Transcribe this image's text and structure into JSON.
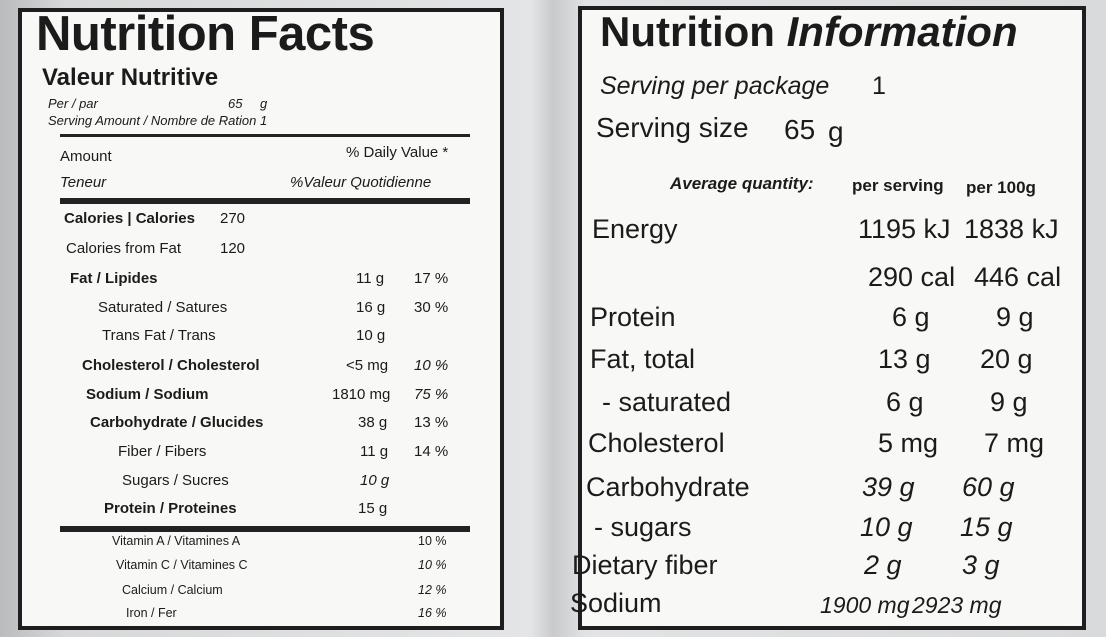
{
  "left": {
    "title": "Nutrition Facts",
    "subtitle": "Valeur Nutritive",
    "per_label": "Per / par",
    "per_value": "65",
    "per_unit": "g",
    "serving_line": "Serving Amount / Nombre de Ration 1",
    "amount": "Amount",
    "teneur": "Teneur",
    "dv_en": "% Daily Value *",
    "dv_fr": "%Valeur Quotidienne",
    "calories_label": "Calories | Calories",
    "calories_value": "270",
    "fat_cal_label": "Calories from Fat",
    "fat_cal_value": "120",
    "rows": [
      {
        "label": "Fat / Lipides",
        "amount": "11 g",
        "pct": "17 %"
      },
      {
        "label": "Saturated / Satures",
        "amount": "16 g",
        "pct": "30 %"
      },
      {
        "label": "Trans Fat / Trans",
        "amount": "10 g",
        "pct": ""
      },
      {
        "label": "Cholesterol / Cholesterol",
        "amount": "<5 mg",
        "pct": "10 %"
      },
      {
        "label": "Sodium / Sodium",
        "amount": "1810 mg",
        "pct": "75 %"
      },
      {
        "label": "Carbohydrate / Glucides",
        "amount": "38 g",
        "pct": "13 %"
      },
      {
        "label": "Fiber / Fibers",
        "amount": "11 g",
        "pct": "14 %"
      },
      {
        "label": "Sugars / Sucres",
        "amount": "10 g",
        "pct": ""
      },
      {
        "label": "Protein / Proteines",
        "amount": "15 g",
        "pct": ""
      }
    ],
    "vitamins": [
      {
        "label": "Vitamin A / Vitamines A",
        "pct": "10 %"
      },
      {
        "label": "Vitamin C / Vitamines C",
        "pct": "10 %"
      },
      {
        "label": "Calcium / Calcium",
        "pct": "12 %"
      },
      {
        "label": "Iron / Fer",
        "pct": "16 %"
      }
    ]
  },
  "right": {
    "title_a": "Nutrition",
    "title_b": "Information",
    "servings_label": "Serving per package",
    "servings_value": "1",
    "size_label": "Serving size",
    "size_value": "65",
    "size_unit": "g",
    "avg_label": "Average quantity:",
    "col_serving": "per serving",
    "col_100g": "per 100g",
    "rows": [
      {
        "label": "Energy",
        "serving": "1195 kJ",
        "per100": "1838 kJ"
      },
      {
        "label": "",
        "serving": "290 cal",
        "per100": "446 cal"
      },
      {
        "label": "Protein",
        "serving": "6 g",
        "per100": "9 g"
      },
      {
        "label": "Fat, total",
        "serving": "13 g",
        "per100": "20 g"
      },
      {
        "label": "- saturated",
        "serving": "6 g",
        "per100": "9 g"
      },
      {
        "label": "Cholesterol",
        "serving": "5 mg",
        "per100": "7 mg"
      },
      {
        "label": "Carbohydrate",
        "serving": "39 g",
        "per100": "60 g"
      },
      {
        "label": "- sugars",
        "serving": "10 g",
        "per100": "15 g"
      },
      {
        "label": "Dietary fiber",
        "serving": "2 g",
        "per100": "3 g"
      },
      {
        "label": "Sodium",
        "serving": "1900 mg",
        "per100": "2923 mg"
      }
    ]
  }
}
